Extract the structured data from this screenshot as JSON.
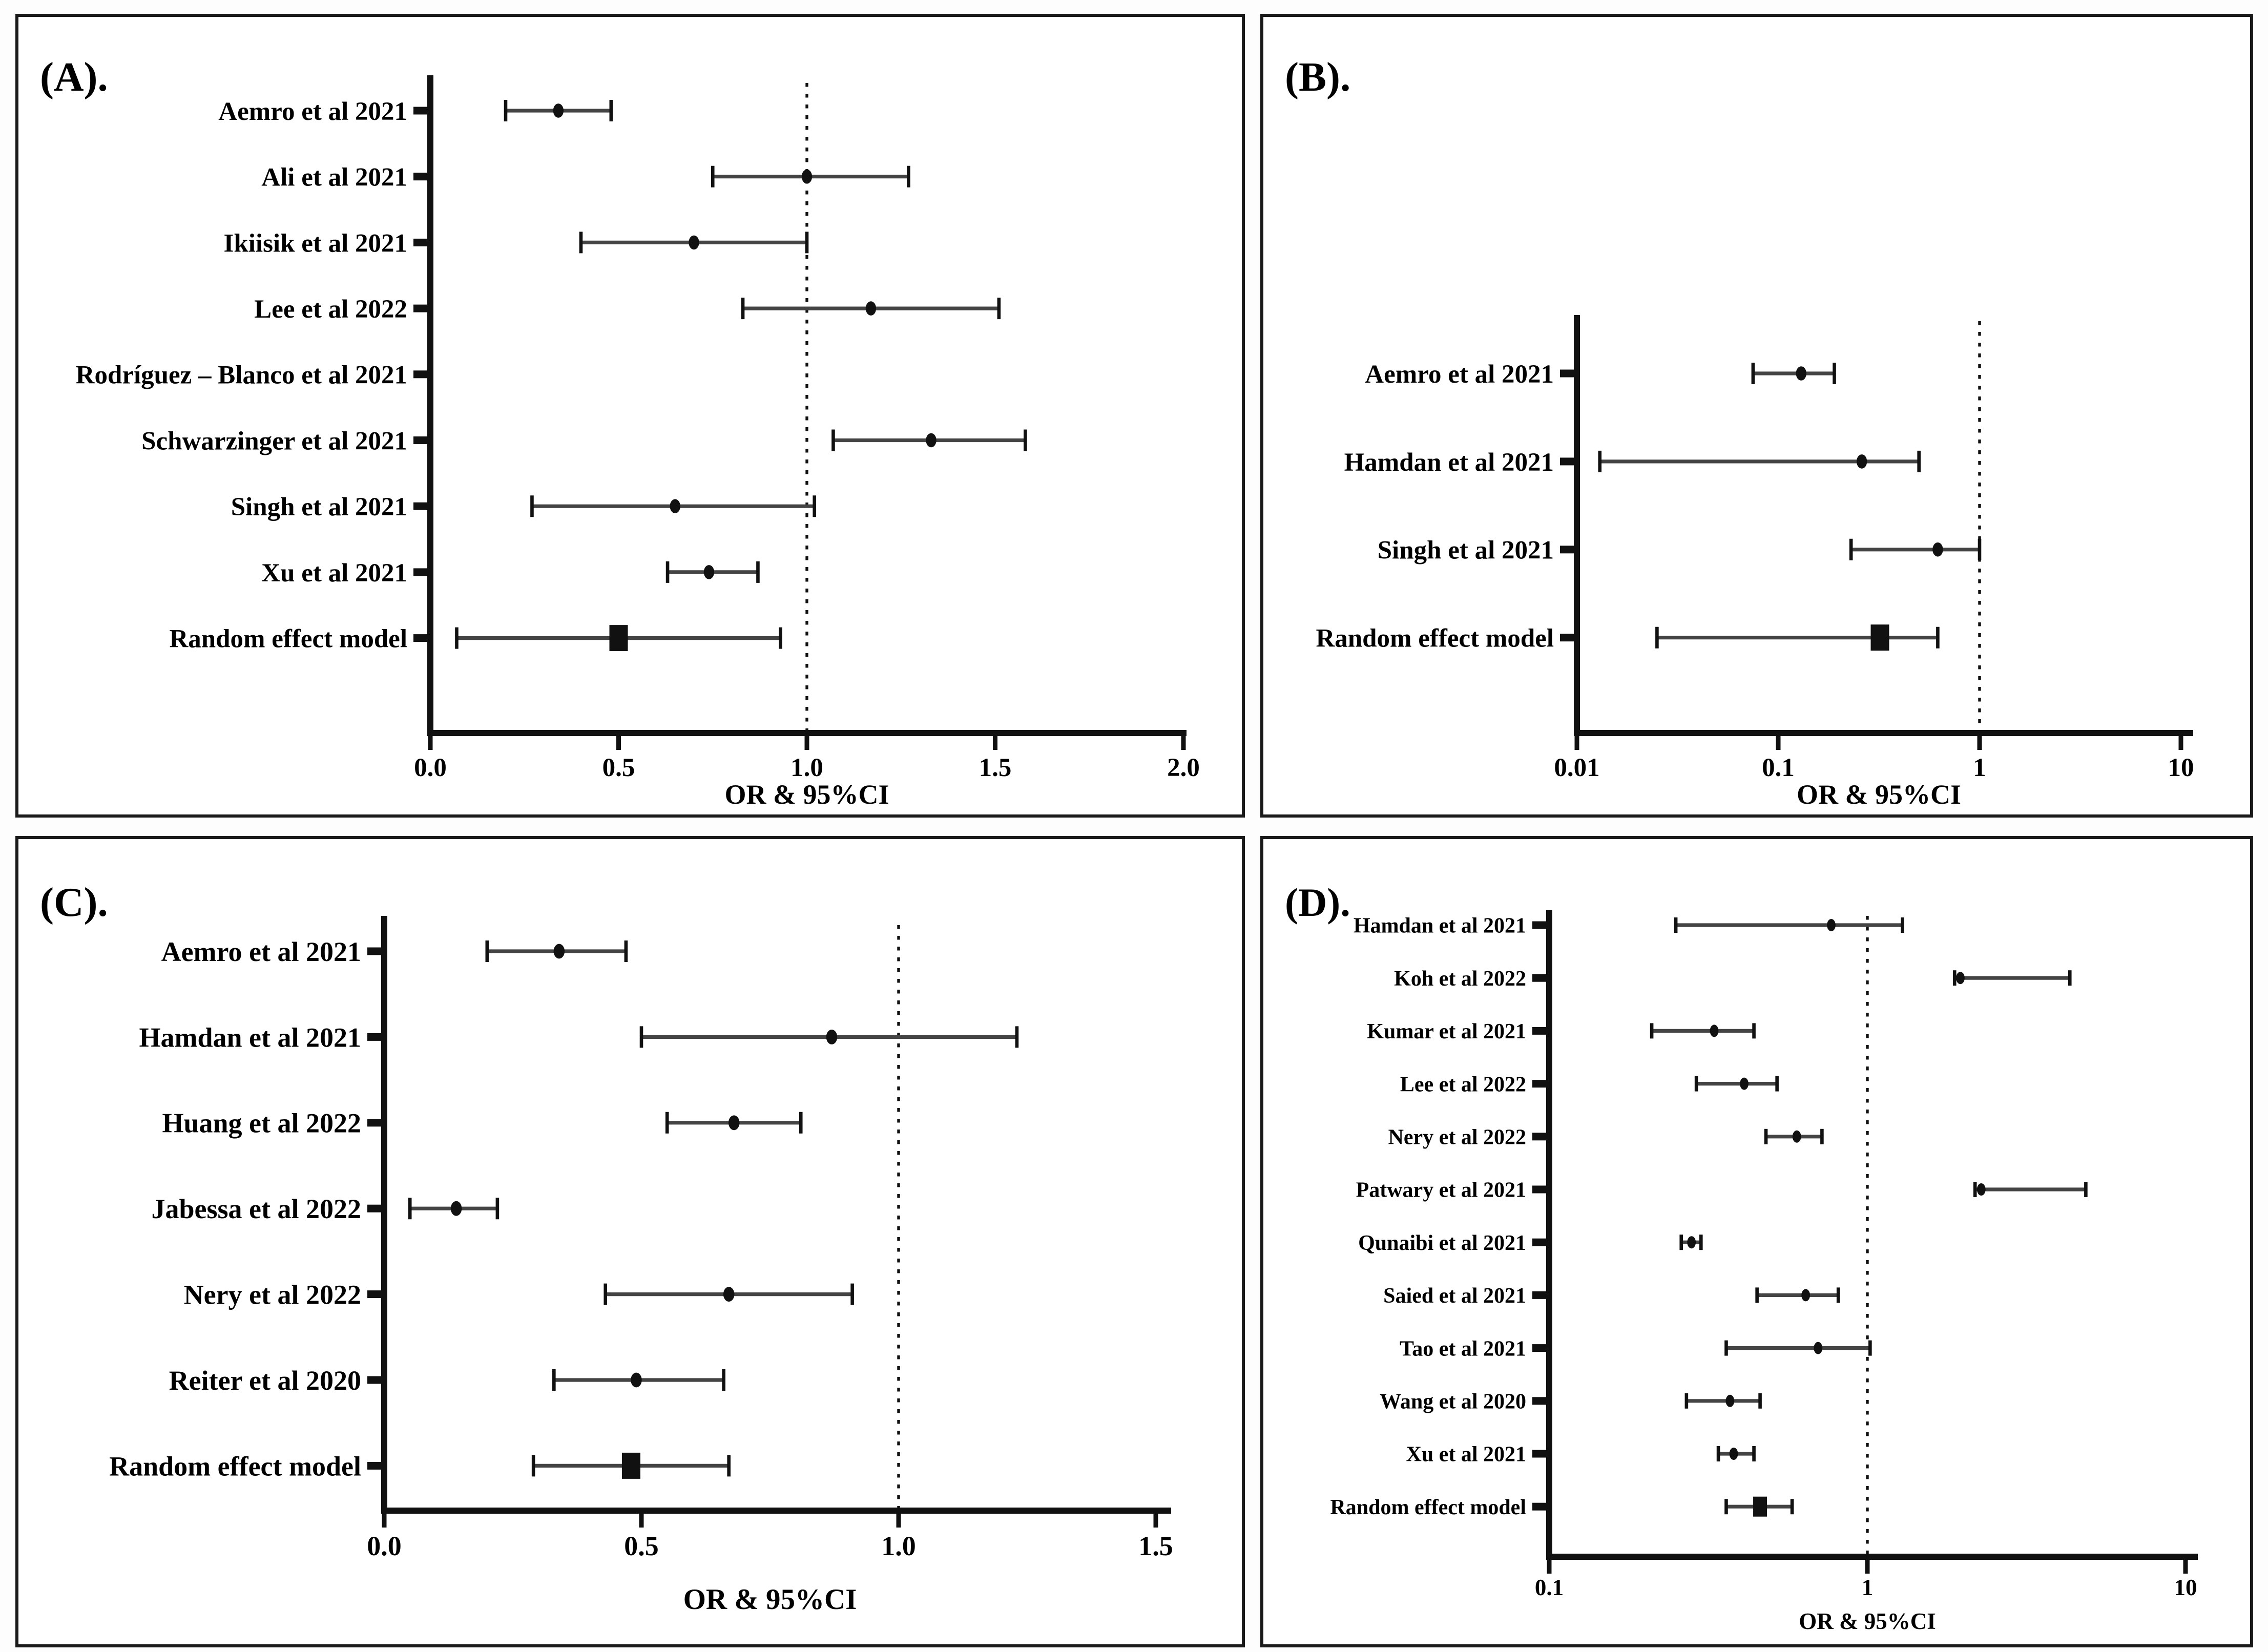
{
  "figure": {
    "description": "Four-panel forest plot figure of odds ratios with 95% confidence intervals",
    "xlabel": "OR & 95%CI"
  },
  "colors": {
    "line": "#111111",
    "ci_line": "#444444",
    "text": "#000000",
    "panel_border": "#1a1a1a",
    "panel_bg": "#ffffff",
    "page_bg": "#fdfdfd"
  },
  "chart_data": {
    "type": "forest",
    "figure_xlabel": "OR & 95%CI",
    "panels": [
      {
        "id": "A",
        "title": "(A).",
        "xlabel": "OR & 95%CI",
        "scale": "linear",
        "xmin": 0.0,
        "xmax": 2.0,
        "ref_line": 1.0,
        "tick_values": [
          0.0,
          0.5,
          1.0,
          1.5,
          2.0
        ],
        "tick_labels": [
          "0.0",
          "0.5",
          "1.0",
          "1.5",
          "2.0"
        ],
        "studies": [
          {
            "label": "Aemro et al 2021",
            "or": 0.34,
            "lo": 0.2,
            "hi": 0.48,
            "summary": false
          },
          {
            "label": "Ali et al 2021",
            "or": 1.0,
            "lo": 0.75,
            "hi": 1.27,
            "summary": false
          },
          {
            "label": "Ikiisik et al 2021",
            "or": 0.7,
            "lo": 0.4,
            "hi": 1.0,
            "summary": false
          },
          {
            "label": "Lee et al 2022",
            "or": 1.17,
            "lo": 0.83,
            "hi": 1.51,
            "summary": false
          },
          {
            "label": "Rodríguez – Blanco et al 2021",
            "or": null,
            "lo": null,
            "hi": null,
            "summary": false
          },
          {
            "label": "Schwarzinger et al 2021",
            "or": 1.33,
            "lo": 1.07,
            "hi": 1.58,
            "summary": false
          },
          {
            "label": "Singh et al 2021",
            "or": 0.65,
            "lo": 0.27,
            "hi": 1.02,
            "summary": false
          },
          {
            "label": "Xu et al 2021",
            "or": 0.74,
            "lo": 0.63,
            "hi": 0.87,
            "summary": false
          },
          {
            "label": "Random effect model",
            "or": 0.5,
            "lo": 0.07,
            "hi": 0.93,
            "summary": true
          }
        ]
      },
      {
        "id": "B",
        "title": "(B).",
        "xlabel": "OR & 95%CI",
        "scale": "log",
        "xmin": 0.01,
        "xmax": 10,
        "ref_line": 1.0,
        "tick_values": [
          0.01,
          0.1,
          1,
          10
        ],
        "tick_labels": [
          "0.01",
          "0.1",
          "1",
          "10"
        ],
        "studies": [
          {
            "label": "Aemro et al 2021",
            "or": 0.13,
            "lo": 0.075,
            "hi": 0.19,
            "summary": false
          },
          {
            "label": "Hamdan et al 2021",
            "or": 0.26,
            "lo": 0.013,
            "hi": 0.5,
            "summary": false
          },
          {
            "label": "Singh et al 2021",
            "or": 0.62,
            "lo": 0.23,
            "hi": 1.0,
            "summary": false
          },
          {
            "label": "Random effect model",
            "or": 0.32,
            "lo": 0.025,
            "hi": 0.62,
            "summary": true
          }
        ]
      },
      {
        "id": "C",
        "title": "(C).",
        "xlabel": "OR & 95%CI",
        "scale": "linear",
        "xmin": 0.0,
        "xmax": 1.5,
        "ref_line": 1.0,
        "tick_values": [
          0.0,
          0.5,
          1.0,
          1.5
        ],
        "tick_labels": [
          "0.0",
          "0.5",
          "1.0",
          "1.5"
        ],
        "studies": [
          {
            "label": "Aemro et al 2021",
            "or": 0.34,
            "lo": 0.2,
            "hi": 0.47,
            "summary": false
          },
          {
            "label": "Hamdan et al 2021",
            "or": 0.87,
            "lo": 0.5,
            "hi": 1.23,
            "summary": false
          },
          {
            "label": "Huang et al 2022",
            "or": 0.68,
            "lo": 0.55,
            "hi": 0.81,
            "summary": false
          },
          {
            "label": "Jabessa et al 2022",
            "or": 0.14,
            "lo": 0.05,
            "hi": 0.22,
            "summary": false
          },
          {
            "label": "Nery et al 2022",
            "or": 0.67,
            "lo": 0.43,
            "hi": 0.91,
            "summary": false
          },
          {
            "label": "Reiter et al 2020",
            "or": 0.49,
            "lo": 0.33,
            "hi": 0.66,
            "summary": false
          },
          {
            "label": "Random effect model",
            "or": 0.48,
            "lo": 0.29,
            "hi": 0.67,
            "summary": true
          }
        ]
      },
      {
        "id": "D",
        "title": "(D).",
        "xlabel": "OR & 95%CI",
        "scale": "log",
        "xmin": 0.1,
        "xmax": 10,
        "ref_line": 1.0,
        "tick_values": [
          0.1,
          1,
          10
        ],
        "tick_labels": [
          "0.1",
          "1",
          "10"
        ],
        "studies": [
          {
            "label": "Hamdan et al 2021",
            "or": 0.77,
            "lo": 0.25,
            "hi": 1.29,
            "summary": false
          },
          {
            "label": "Koh et al 2022",
            "or": 1.96,
            "lo": 1.88,
            "hi": 4.33,
            "summary": false
          },
          {
            "label": "Kumar et al 2021",
            "or": 0.33,
            "lo": 0.21,
            "hi": 0.44,
            "summary": false
          },
          {
            "label": "Lee et al 2022",
            "or": 0.41,
            "lo": 0.29,
            "hi": 0.52,
            "summary": false
          },
          {
            "label": "Nery et al 2022",
            "or": 0.6,
            "lo": 0.48,
            "hi": 0.72,
            "summary": false
          },
          {
            "label": "Patwary et al 2021",
            "or": 2.28,
            "lo": 2.18,
            "hi": 4.86,
            "summary": false
          },
          {
            "label": "Qunaibi et al 2021",
            "or": 0.28,
            "lo": 0.26,
            "hi": 0.3,
            "summary": false
          },
          {
            "label": "Saied et al 2021",
            "or": 0.64,
            "lo": 0.45,
            "hi": 0.81,
            "summary": false
          },
          {
            "label": "Tao et al 2021",
            "or": 0.7,
            "lo": 0.36,
            "hi": 1.02,
            "summary": false
          },
          {
            "label": "Wang et al 2020",
            "or": 0.37,
            "lo": 0.27,
            "hi": 0.46,
            "summary": false
          },
          {
            "label": "Xu et al 2021",
            "or": 0.38,
            "lo": 0.34,
            "hi": 0.44,
            "summary": false
          },
          {
            "label": "Random effect model",
            "or": 0.46,
            "lo": 0.36,
            "hi": 0.58,
            "summary": true
          }
        ]
      }
    ]
  }
}
